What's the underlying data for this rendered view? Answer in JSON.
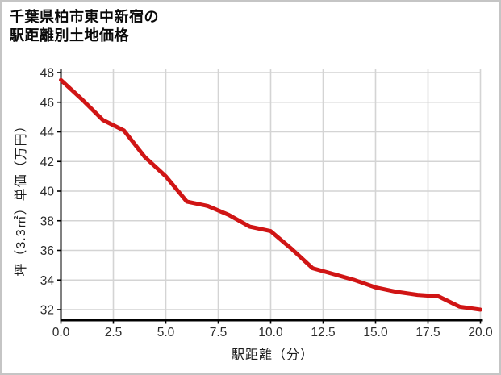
{
  "window": {
    "background": "#ffffff",
    "border_color": "#c5c5c5"
  },
  "header": {
    "title_line1": "千葉県柏市東中新宿の",
    "title_line2": "駅距離別土地価格"
  },
  "chart_data": {
    "type": "line",
    "title": "千葉県柏市東中新宿の駅距離別土地価格",
    "xlabel": "駅距離（分）",
    "ylabel": "坪（3.3㎡）単価（万円）",
    "series": [
      {
        "name": "坪単価（万円）",
        "x": [
          0,
          1,
          2,
          3,
          4,
          5,
          6,
          7,
          8,
          9,
          10,
          11,
          12,
          13,
          14,
          15,
          16,
          17,
          18,
          19,
          20
        ],
        "values": [
          47.5,
          46.2,
          44.8,
          44.1,
          42.3,
          41.0,
          39.3,
          39.0,
          38.4,
          37.6,
          37.3,
          36.1,
          34.8,
          34.4,
          34.0,
          33.5,
          33.2,
          33.0,
          32.9,
          32.2,
          32.0
        ]
      }
    ],
    "xlim": [
      0,
      20
    ],
    "ylim": [
      31.3,
      48.3
    ],
    "x_ticks": [
      0,
      2.5,
      5,
      7.5,
      10,
      12.5,
      15,
      17.5,
      20
    ],
    "x_tick_labels": [
      "0.0",
      "2.5",
      "5.0",
      "7.5",
      "10.0",
      "12.5",
      "15.0",
      "17.5",
      "20.0"
    ],
    "y_ticks": [
      48,
      46,
      44,
      42,
      40,
      38,
      36,
      34,
      32
    ],
    "y_tick_labels": [
      "48",
      "46",
      "44",
      "42",
      "40",
      "38",
      "36",
      "34",
      "32"
    ],
    "grid": true,
    "legend_position": "none",
    "line_color": "#d01515",
    "grid_color": "#d4d4d4",
    "spine_color": "#000000",
    "tick_label_color": "#2b2b2b",
    "line_width": 5
  }
}
